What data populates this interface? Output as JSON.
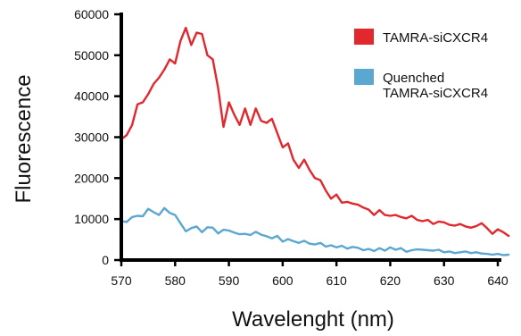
{
  "chart_data": {
    "type": "line",
    "title": "",
    "xlabel": "Wavelenght (nm)",
    "ylabel": "Fluorescence",
    "xlim": [
      570,
      640
    ],
    "ylim": [
      0,
      60000
    ],
    "xticks": [
      "570",
      "580",
      "590",
      "600",
      "610",
      "620",
      "630",
      "640"
    ],
    "yticks": [
      "0",
      "10000",
      "20000",
      "30000",
      "40000",
      "50000",
      "60000"
    ],
    "grid": false,
    "legend_position": "top-right",
    "series": [
      {
        "name": "TAMRA-siCXCR4",
        "color": "#e0282e",
        "points": [
          [
            570,
            29500
          ],
          [
            571,
            30500
          ],
          [
            572,
            33000
          ],
          [
            573,
            38000
          ],
          [
            574,
            38500
          ],
          [
            575,
            40500
          ],
          [
            576,
            43000
          ],
          [
            577,
            44500
          ],
          [
            578,
            46500
          ],
          [
            579,
            49000
          ],
          [
            580,
            48000
          ],
          [
            581,
            53500
          ],
          [
            582,
            56700
          ],
          [
            583,
            52500
          ],
          [
            584,
            55500
          ],
          [
            585,
            55200
          ],
          [
            586,
            50000
          ],
          [
            587,
            49000
          ],
          [
            588,
            42000
          ],
          [
            589,
            32500
          ],
          [
            590,
            38500
          ],
          [
            591,
            35500
          ],
          [
            592,
            33000
          ],
          [
            593,
            37000
          ],
          [
            594,
            33000
          ],
          [
            595,
            37000
          ],
          [
            596,
            34000
          ],
          [
            597,
            33500
          ],
          [
            598,
            34500
          ],
          [
            599,
            31000
          ],
          [
            600,
            27500
          ],
          [
            601,
            28500
          ],
          [
            602,
            24500
          ],
          [
            603,
            22500
          ],
          [
            604,
            24500
          ],
          [
            605,
            22000
          ],
          [
            606,
            20000
          ],
          [
            607,
            19500
          ],
          [
            608,
            17000
          ],
          [
            609,
            15000
          ],
          [
            610,
            16000
          ],
          [
            611,
            14000
          ],
          [
            612,
            14200
          ],
          [
            613,
            13800
          ],
          [
            614,
            13500
          ],
          [
            615,
            12800
          ],
          [
            616,
            12300
          ],
          [
            617,
            11000
          ],
          [
            618,
            12200
          ],
          [
            619,
            11000
          ],
          [
            620,
            10800
          ],
          [
            621,
            11000
          ],
          [
            622,
            10500
          ],
          [
            623,
            10200
          ],
          [
            624,
            10800
          ],
          [
            625,
            9800
          ],
          [
            626,
            9500
          ],
          [
            627,
            9800
          ],
          [
            628,
            8800
          ],
          [
            629,
            9400
          ],
          [
            630,
            9200
          ],
          [
            631,
            8600
          ],
          [
            632,
            8400
          ],
          [
            633,
            8800
          ],
          [
            634,
            8200
          ],
          [
            635,
            7900
          ],
          [
            636,
            8300
          ],
          [
            637,
            9000
          ],
          [
            638,
            7800
          ],
          [
            639,
            6400
          ],
          [
            640,
            7500
          ],
          [
            641,
            6800
          ],
          [
            642,
            5900
          ]
        ]
      },
      {
        "name": "Quenched TAMRA-siCXCR4",
        "color": "#5aa7d2",
        "points": [
          [
            570,
            9500
          ],
          [
            571,
            9300
          ],
          [
            572,
            10500
          ],
          [
            573,
            10800
          ],
          [
            574,
            10700
          ],
          [
            575,
            12500
          ],
          [
            576,
            11700
          ],
          [
            577,
            11000
          ],
          [
            578,
            12700
          ],
          [
            579,
            11500
          ],
          [
            580,
            11000
          ],
          [
            581,
            9000
          ],
          [
            582,
            7000
          ],
          [
            583,
            7800
          ],
          [
            584,
            8200
          ],
          [
            585,
            6800
          ],
          [
            586,
            8000
          ],
          [
            587,
            7900
          ],
          [
            588,
            6500
          ],
          [
            589,
            7400
          ],
          [
            590,
            7200
          ],
          [
            591,
            6700
          ],
          [
            592,
            6300
          ],
          [
            593,
            6400
          ],
          [
            594,
            6100
          ],
          [
            595,
            6900
          ],
          [
            596,
            6200
          ],
          [
            597,
            5800
          ],
          [
            598,
            5300
          ],
          [
            599,
            5900
          ],
          [
            600,
            4500
          ],
          [
            601,
            5100
          ],
          [
            602,
            4600
          ],
          [
            603,
            4200
          ],
          [
            604,
            4700
          ],
          [
            605,
            4000
          ],
          [
            606,
            3800
          ],
          [
            607,
            4200
          ],
          [
            608,
            3300
          ],
          [
            609,
            3600
          ],
          [
            610,
            3100
          ],
          [
            611,
            3500
          ],
          [
            612,
            2800
          ],
          [
            613,
            3200
          ],
          [
            614,
            3000
          ],
          [
            615,
            2400
          ],
          [
            616,
            2700
          ],
          [
            617,
            2200
          ],
          [
            618,
            2900
          ],
          [
            619,
            2300
          ],
          [
            620,
            3100
          ],
          [
            621,
            2500
          ],
          [
            622,
            2900
          ],
          [
            623,
            2000
          ],
          [
            624,
            2400
          ],
          [
            625,
            2600
          ],
          [
            626,
            2500
          ],
          [
            627,
            2400
          ],
          [
            628,
            2300
          ],
          [
            629,
            2500
          ],
          [
            630,
            1900
          ],
          [
            631,
            2100
          ],
          [
            632,
            1700
          ],
          [
            633,
            1900
          ],
          [
            634,
            2100
          ],
          [
            635,
            1700
          ],
          [
            636,
            1900
          ],
          [
            637,
            1600
          ],
          [
            638,
            1500
          ],
          [
            639,
            1300
          ],
          [
            640,
            1500
          ],
          [
            641,
            1200
          ],
          [
            642,
            1300
          ]
        ]
      }
    ]
  }
}
